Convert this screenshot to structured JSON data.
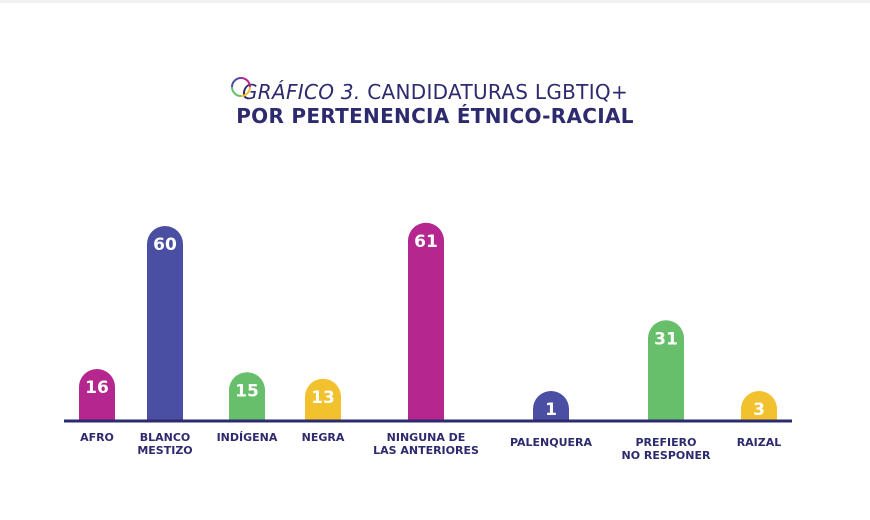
{
  "title": {
    "prefix": "GRÁFICO 3.",
    "rest": "CANDIDATURAS LGBTIQ+",
    "line2": "POR PERTENENCIA ÉTNICO-RACIAL"
  },
  "chart_data": {
    "type": "bar",
    "categories": [
      [
        "AFRO"
      ],
      [
        "BLANCO",
        "MESTIZO"
      ],
      [
        "INDÍGENA"
      ],
      [
        "NEGRA"
      ],
      [
        "NINGUNA DE",
        "LAS ANTERIORES"
      ],
      [
        "PALENQUERA"
      ],
      [
        "PREFIERO",
        "NO RESPONER"
      ],
      [
        "RAIZAL"
      ]
    ],
    "values": [
      16,
      60,
      15,
      13,
      61,
      1,
      31,
      3
    ],
    "colors": [
      "#b5268f",
      "#4b4fa3",
      "#67bf6b",
      "#f2c12e",
      "#b5268f",
      "#4b4fa3",
      "#67bf6b",
      "#f2c12e"
    ],
    "axis_color": "#2d2a6e",
    "xlabel": "",
    "ylabel": "",
    "ylim": [
      0,
      61
    ],
    "grid": false,
    "legend": "none"
  }
}
